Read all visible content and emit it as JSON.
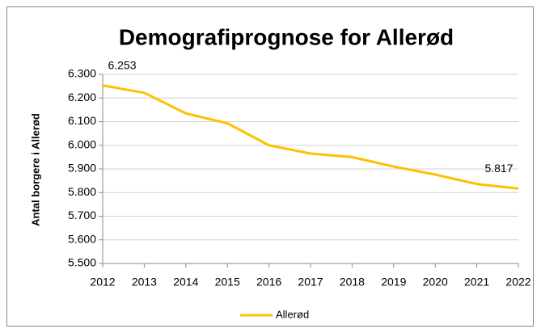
{
  "chart_data": {
    "type": "line",
    "title": "Demografiprognose for Allerød",
    "ylabel": "Antal borgere i Allerød",
    "categories": [
      "2012",
      "2013",
      "2014",
      "2015",
      "2016",
      "2017",
      "2018",
      "2019",
      "2020",
      "2021",
      "2022"
    ],
    "series": [
      {
        "name": "Allerød",
        "color": "#ffc000",
        "values": [
          6253,
          6222,
          6135,
          6093,
          6000,
          5965,
          5950,
          5910,
          5876,
          5836,
          5817
        ],
        "value_labels": [
          "6.253",
          null,
          null,
          null,
          null,
          null,
          null,
          null,
          null,
          null,
          "5.817"
        ]
      }
    ],
    "ylim": [
      5500,
      6300
    ],
    "yticks": [
      {
        "value": 5500,
        "label": "5.500"
      },
      {
        "value": 5600,
        "label": "5.600"
      },
      {
        "value": 5700,
        "label": "5.700"
      },
      {
        "value": 5800,
        "label": "5.800"
      },
      {
        "value": 5900,
        "label": "5.900"
      },
      {
        "value": 6000,
        "label": "6.000"
      },
      {
        "value": 6100,
        "label": "6.100"
      },
      {
        "value": 6200,
        "label": "6.200"
      },
      {
        "value": 6300,
        "label": "6.300"
      }
    ],
    "grid": true,
    "legend": "bottom"
  }
}
